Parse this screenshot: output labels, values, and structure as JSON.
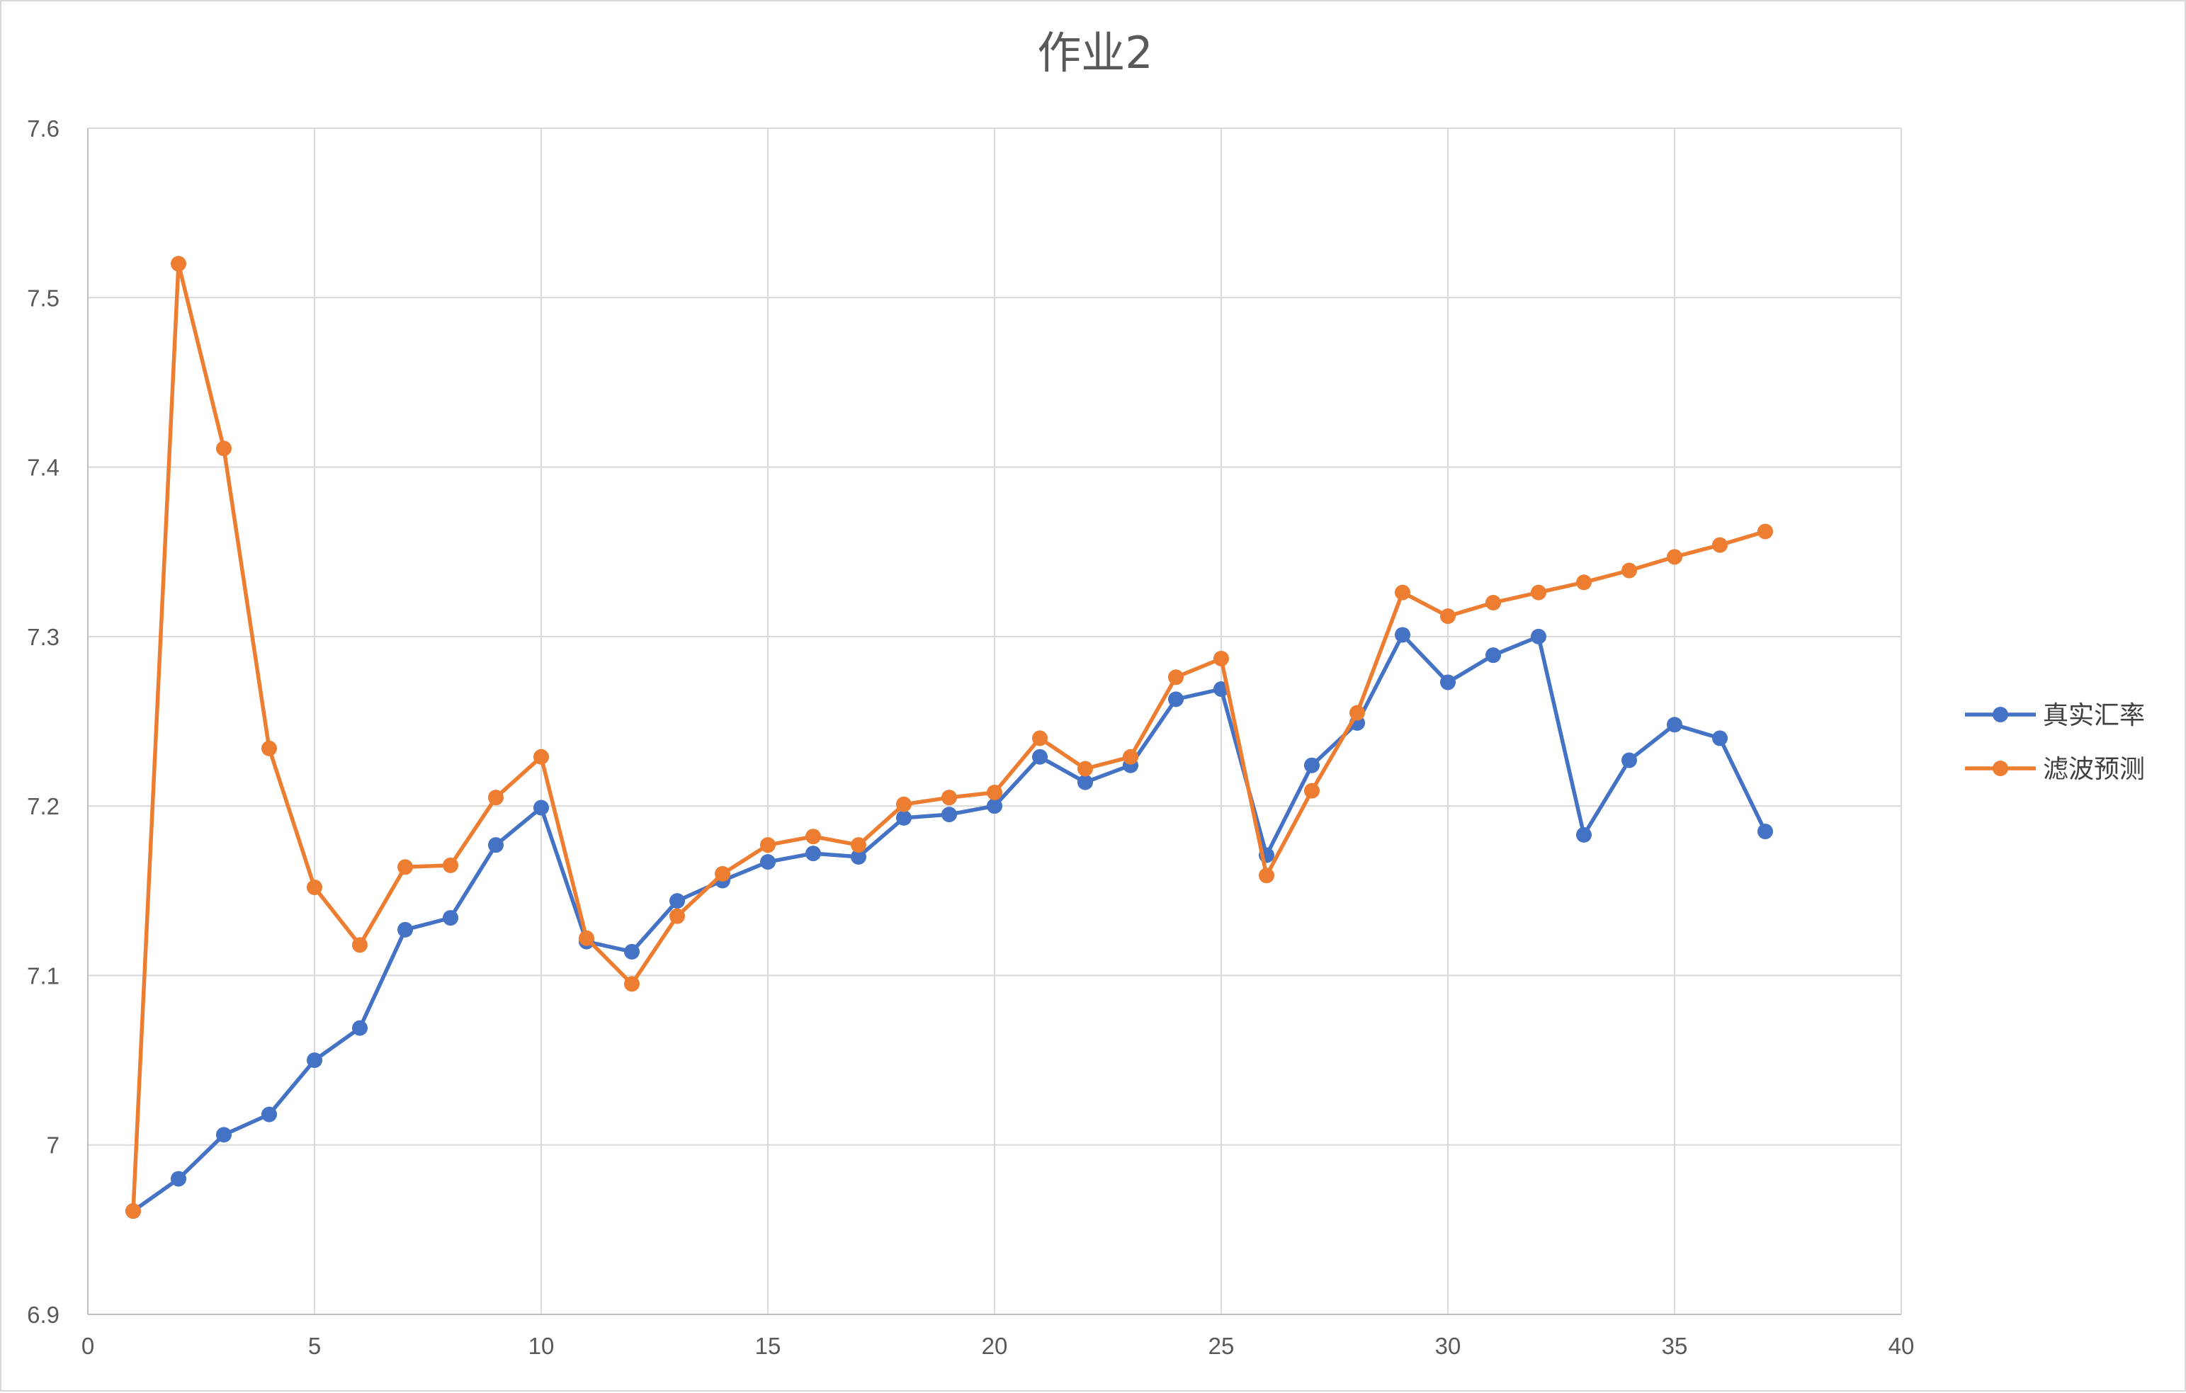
{
  "chart_data": {
    "type": "line",
    "title": "作业2",
    "xlabel": "",
    "ylabel": "",
    "xlim": [
      0,
      40
    ],
    "ylim": [
      6.9,
      7.6
    ],
    "x_ticks": [
      0,
      5,
      10,
      15,
      20,
      25,
      30,
      35,
      40
    ],
    "x_tick_labels": [
      "0",
      "5",
      "10",
      "15",
      "20",
      "25",
      "30",
      "35",
      "40"
    ],
    "y_ticks": [
      6.9,
      7.0,
      7.1,
      7.2,
      7.3,
      7.4,
      7.5,
      7.6
    ],
    "y_tick_labels": [
      "6.9",
      "7",
      "7.1",
      "7.2",
      "7.3",
      "7.4",
      "7.5",
      "7.6"
    ],
    "grid": true,
    "legend_position": "right",
    "series": [
      {
        "name": "真实汇率",
        "color": "#4472C4",
        "x": [
          1,
          2,
          3,
          4,
          5,
          6,
          7,
          8,
          9,
          10,
          11,
          12,
          13,
          14,
          15,
          16,
          17,
          18,
          19,
          20,
          21,
          22,
          23,
          24,
          25,
          26,
          27,
          28,
          29,
          30,
          31,
          32,
          33,
          34,
          35,
          36,
          37
        ],
        "values": [
          6.961,
          6.98,
          7.006,
          7.018,
          7.05,
          7.069,
          7.127,
          7.134,
          7.177,
          7.199,
          7.12,
          7.114,
          7.144,
          7.156,
          7.167,
          7.172,
          7.17,
          7.193,
          7.195,
          7.2,
          7.229,
          7.214,
          7.224,
          7.263,
          7.269,
          7.171,
          7.224,
          7.249,
          7.301,
          7.273,
          7.289,
          7.3,
          7.183,
          7.227,
          7.248,
          7.24,
          7.185
        ]
      },
      {
        "name": "滤波预测",
        "color": "#ED7D31",
        "x": [
          1,
          2,
          3,
          4,
          5,
          6,
          7,
          8,
          9,
          10,
          11,
          12,
          13,
          14,
          15,
          16,
          17,
          18,
          19,
          20,
          21,
          22,
          23,
          24,
          25,
          26,
          27,
          28,
          29,
          30,
          31,
          32,
          33,
          34,
          35,
          36,
          37
        ],
        "values": [
          6.961,
          7.52,
          7.411,
          7.234,
          7.152,
          7.118,
          7.164,
          7.165,
          7.205,
          7.229,
          7.122,
          7.095,
          7.135,
          7.16,
          7.177,
          7.182,
          7.177,
          7.201,
          7.205,
          7.208,
          7.24,
          7.222,
          7.229,
          7.276,
          7.287,
          7.159,
          7.209,
          7.255,
          7.326,
          7.312,
          7.32,
          7.326,
          7.332,
          7.339,
          7.347,
          7.354,
          7.362
        ]
      }
    ]
  }
}
